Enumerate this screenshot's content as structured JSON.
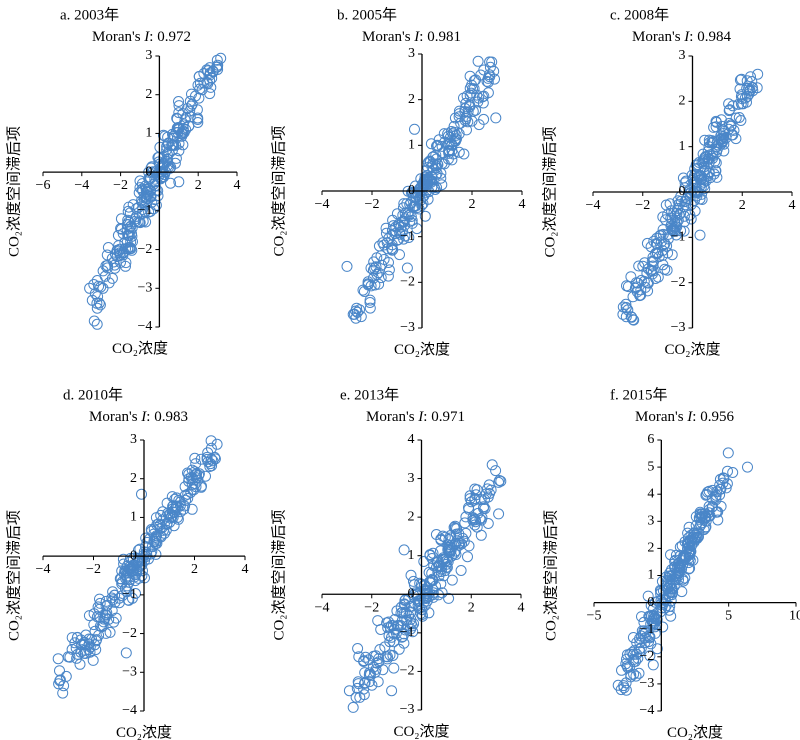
{
  "figure": {
    "x_axis_label": "CO₂浓度",
    "y_axis_label": "CO₂浓度空间滞后项",
    "moran_prefix": "Moran's ",
    "moran_symbol": "I",
    "moran_sep": ": "
  },
  "chart_data": [
    {
      "type": "scatter",
      "panel_label": "a. 2003年",
      "moran_i": "0.972",
      "xlim": [
        -6,
        4
      ],
      "ylim": [
        -4,
        3
      ],
      "xticks": [
        -6,
        -4,
        -2,
        0,
        2,
        4
      ],
      "yticks": [
        -4,
        -3,
        -2,
        -1,
        0,
        1,
        2,
        3
      ],
      "marker_color": "#4a86c8",
      "trend": {
        "slope": 0.97,
        "intercept": 0.0,
        "xmin": -3.6,
        "xmax": 3.2,
        "spread": 0.32
      },
      "points": [
        [
          -3.6,
          -3.0
        ],
        [
          -3.2,
          -2.8
        ],
        [
          -2.9,
          -2.55
        ],
        [
          -1.5,
          -1.05
        ],
        [
          -1.0,
          -0.4
        ],
        [
          1.0,
          -0.25
        ],
        [
          3.0,
          2.65
        ],
        [
          2.6,
          2.7
        ],
        [
          2.3,
          2.3
        ]
      ]
    },
    {
      "type": "scatter",
      "panel_label": "b. 2005年",
      "moran_i": "0.981",
      "xlim": [
        -4,
        4
      ],
      "ylim": [
        -3,
        3
      ],
      "xticks": [
        -4,
        -2,
        0,
        2,
        4
      ],
      "yticks": [
        -3,
        -2,
        -1,
        0,
        1,
        2,
        3
      ],
      "marker_color": "#4a86c8",
      "trend": {
        "slope": 0.96,
        "intercept": 0.0,
        "xmin": -2.8,
        "xmax": 2.9,
        "spread": 0.28
      },
      "points": [
        [
          -3.0,
          -1.65
        ],
        [
          -2.7,
          -2.7
        ],
        [
          -2.5,
          -2.6
        ],
        [
          2.9,
          2.45
        ],
        [
          2.95,
          1.6
        ],
        [
          -0.3,
          1.35
        ],
        [
          2.6,
          2.4
        ]
      ]
    },
    {
      "type": "scatter",
      "panel_label": "c. 2008年",
      "moran_i": "0.984",
      "xlim": [
        -4,
        4
      ],
      "ylim": [
        -3,
        3
      ],
      "xticks": [
        -4,
        -2,
        0,
        2,
        4
      ],
      "yticks": [
        -3,
        -2,
        -1,
        0,
        1,
        2,
        3
      ],
      "marker_color": "#4a86c8",
      "trend": {
        "slope": 0.97,
        "intercept": 0.0,
        "xmin": -2.8,
        "xmax": 2.7,
        "spread": 0.28
      },
      "points": [
        [
          -2.8,
          -2.7
        ],
        [
          -2.6,
          -2.6
        ],
        [
          -1.0,
          -0.5
        ],
        [
          1.2,
          1.1
        ],
        [
          2.6,
          2.3
        ],
        [
          2.4,
          2.3
        ],
        [
          0.3,
          -0.95
        ]
      ]
    },
    {
      "type": "scatter",
      "panel_label": "d. 2010年",
      "moran_i": "0.983",
      "xlim": [
        -4,
        4
      ],
      "ylim": [
        -4,
        3
      ],
      "xticks": [
        -4,
        -2,
        0,
        2,
        4
      ],
      "yticks": [
        -4,
        -3,
        -2,
        -1,
        0,
        1,
        2,
        3
      ],
      "marker_color": "#4a86c8",
      "trend": {
        "slope": 0.96,
        "intercept": 0.0,
        "xmin": -3.4,
        "xmax": 2.9,
        "spread": 0.26
      },
      "points": [
        [
          -3.4,
          -2.65
        ],
        [
          -3.0,
          -2.6
        ],
        [
          -0.7,
          -2.5
        ],
        [
          -0.1,
          1.6
        ],
        [
          2.8,
          2.55
        ],
        [
          2.5,
          2.55
        ],
        [
          -1.1,
          -1.6
        ]
      ]
    },
    {
      "type": "scatter",
      "panel_label": "e. 2013年",
      "moran_i": "0.971",
      "xlim": [
        -4,
        4
      ],
      "ylim": [
        -3,
        4
      ],
      "xticks": [
        -4,
        -2,
        0,
        2,
        4
      ],
      "yticks": [
        -3,
        -2,
        -1,
        0,
        1,
        2,
        3,
        4
      ],
      "marker_color": "#4a86c8",
      "trend": {
        "slope": 0.94,
        "intercept": 0.0,
        "xmin": -2.8,
        "xmax": 3.2,
        "spread": 0.34
      },
      "points": [
        [
          -2.9,
          -2.5
        ],
        [
          -2.3,
          -2.6
        ],
        [
          -1.2,
          -2.5
        ],
        [
          3.1,
          2.9
        ],
        [
          2.8,
          2.7
        ],
        [
          -0.7,
          1.15
        ],
        [
          0.6,
          1.55
        ]
      ]
    },
    {
      "type": "scatter",
      "panel_label": "f. 2015年",
      "moran_i": "0.956",
      "xlim": [
        -5,
        10
      ],
      "ylim": [
        -4,
        6
      ],
      "xticks": [
        -5,
        0,
        5,
        10
      ],
      "yticks": [
        -4,
        -3,
        -2,
        -1,
        0,
        1,
        2,
        3,
        4,
        5,
        6
      ],
      "marker_color": "#4a86c8",
      "trend": {
        "slope": 0.97,
        "intercept": 0.0,
        "xmin": -3.0,
        "xmax": 5.0,
        "spread": 0.42
      },
      "points": [
        [
          -3.2,
          -3.05
        ],
        [
          -2.5,
          -2.4
        ],
        [
          6.4,
          5.0
        ],
        [
          5.3,
          4.8
        ],
        [
          4.6,
          4.6
        ],
        [
          -0.3,
          -1.7
        ],
        [
          -0.6,
          -2.3
        ]
      ]
    }
  ]
}
